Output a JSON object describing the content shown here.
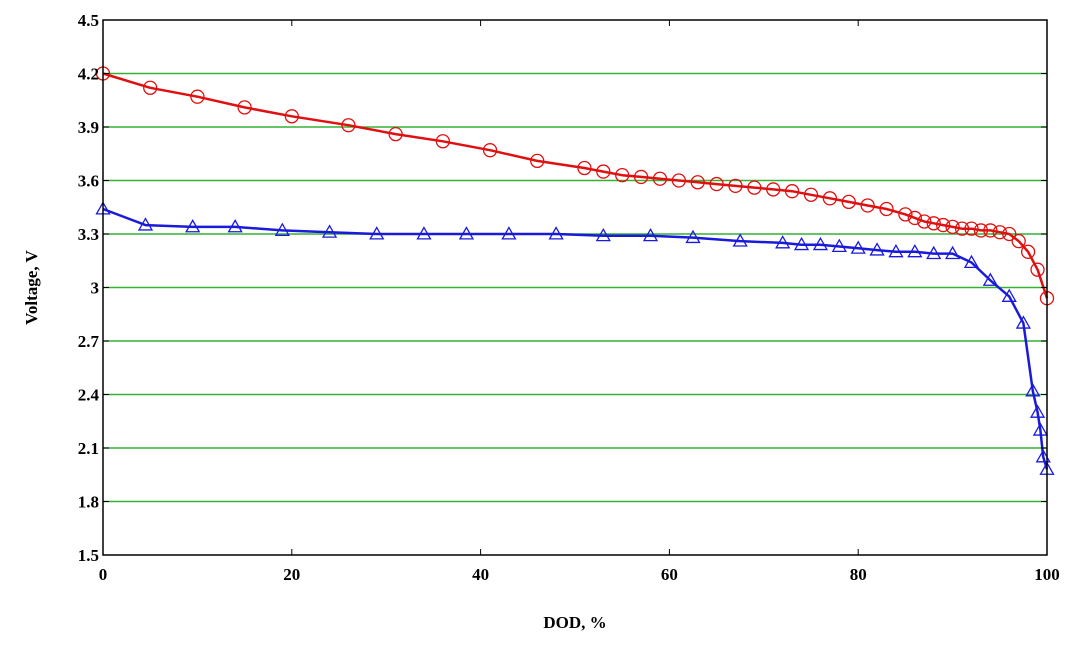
{
  "chart_data": {
    "type": "line",
    "title": "",
    "xlabel": "DOD, %",
    "ylabel": "Voltage, V",
    "xlim": [
      0,
      100
    ],
    "ylim": [
      1.5,
      4.5
    ],
    "xticks": [
      0,
      20,
      40,
      60,
      80,
      100
    ],
    "xtick_labels": [
      "0",
      "20",
      "40",
      "60",
      "80",
      "100"
    ],
    "yticks": [
      1.5,
      1.8,
      2.1,
      2.4,
      2.7,
      3.0,
      3.3,
      3.6,
      3.9,
      4.2,
      4.5
    ],
    "ytick_labels": [
      "1.5",
      "1.8",
      "2.1",
      "2.4",
      "2.7",
      "3",
      "3.3",
      "3.6",
      "3.9",
      "4.2",
      "4.5"
    ],
    "grid": "horizontal",
    "colors": {
      "grid": "#33b233",
      "axes": "#000000",
      "series_red": "#e01010",
      "series_blue": "#1a1adb"
    },
    "series": [
      {
        "color": "#e01010",
        "marker": "circle",
        "x": [
          0,
          5,
          10,
          15,
          20,
          26,
          31,
          36,
          41,
          46,
          51,
          53,
          55,
          57,
          59,
          61,
          63,
          65,
          67,
          69,
          71,
          73,
          75,
          77,
          79,
          81,
          83,
          85,
          86,
          87,
          88,
          89,
          90,
          91,
          92,
          93,
          94,
          95,
          96,
          97,
          98,
          99,
          100
        ],
        "y": [
          4.2,
          4.12,
          4.07,
          4.01,
          3.96,
          3.91,
          3.86,
          3.82,
          3.77,
          3.71,
          3.67,
          3.65,
          3.63,
          3.62,
          3.61,
          3.6,
          3.59,
          3.58,
          3.57,
          3.56,
          3.55,
          3.54,
          3.52,
          3.5,
          3.48,
          3.46,
          3.44,
          3.41,
          3.39,
          3.37,
          3.36,
          3.35,
          3.34,
          3.33,
          3.33,
          3.32,
          3.32,
          3.31,
          3.3,
          3.26,
          3.2,
          3.1,
          2.94
        ]
      },
      {
        "color": "#1a1adb",
        "marker": "triangle",
        "x": [
          0,
          4.5,
          9.5,
          14,
          19,
          24,
          29,
          34,
          38.5,
          43,
          48,
          53,
          58,
          62.5,
          67.5,
          72,
          74,
          76,
          78,
          80,
          82,
          84,
          86,
          88,
          90,
          92,
          94,
          96,
          97.5,
          98.5,
          99,
          99.3,
          99.6,
          100
        ],
        "y": [
          3.44,
          3.35,
          3.34,
          3.34,
          3.32,
          3.31,
          3.3,
          3.3,
          3.3,
          3.3,
          3.3,
          3.29,
          3.29,
          3.28,
          3.26,
          3.25,
          3.24,
          3.24,
          3.23,
          3.22,
          3.21,
          3.2,
          3.2,
          3.19,
          3.19,
          3.14,
          3.04,
          2.95,
          2.8,
          2.42,
          2.3,
          2.2,
          2.05,
          1.98
        ]
      }
    ]
  }
}
